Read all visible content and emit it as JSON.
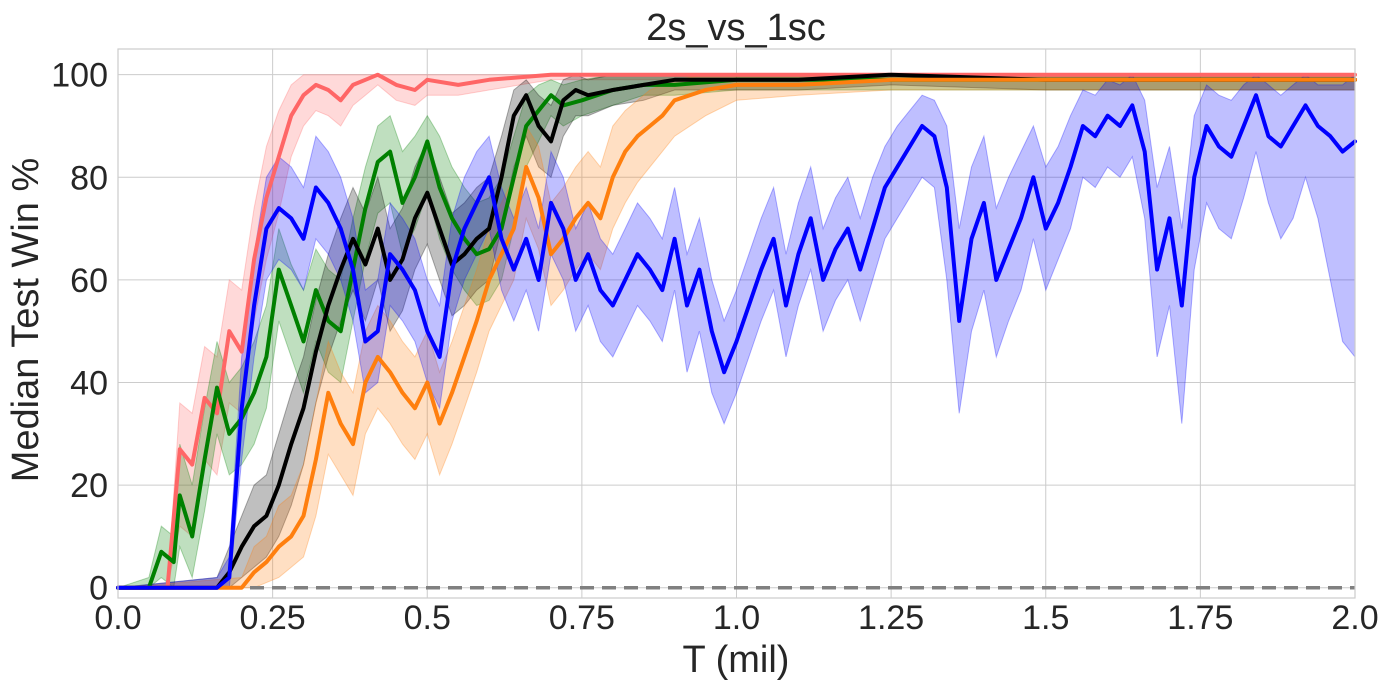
{
  "chart_data": {
    "type": "line",
    "title": "2s_vs_1sc",
    "xlabel": "T (mil)",
    "ylabel": "Median Test Win %",
    "xlim": [
      0.0,
      2.0
    ],
    "ylim": [
      -2,
      105
    ],
    "xticks": [
      "0.0",
      "0.25",
      "0.5",
      "0.75",
      "1.0",
      "1.25",
      "1.5",
      "1.75",
      "2.0"
    ],
    "yticks": [
      "0",
      "20",
      "40",
      "60",
      "80",
      "100"
    ],
    "grid": true,
    "legend": "none",
    "series": [
      {
        "color": "#ff6666",
        "x": [
          0.0,
          0.08,
          0.1,
          0.12,
          0.14,
          0.16,
          0.18,
          0.2,
          0.22,
          0.24,
          0.26,
          0.28,
          0.3,
          0.32,
          0.34,
          0.36,
          0.38,
          0.4,
          0.42,
          0.45,
          0.48,
          0.5,
          0.55,
          0.6,
          0.7,
          0.8,
          1.0,
          1.25,
          1.5,
          1.75,
          2.0
        ],
        "y": [
          0,
          0,
          27,
          24,
          37,
          34,
          50,
          46,
          64,
          76,
          84,
          92,
          96,
          98,
          97,
          95,
          98,
          99,
          100,
          98,
          97,
          99,
          98,
          99,
          100,
          100,
          100,
          100,
          100,
          100,
          100
        ],
        "lo": [
          0,
          0,
          12,
          10,
          25,
          22,
          36,
          34,
          52,
          64,
          73,
          84,
          90,
          93,
          92,
          90,
          94,
          96,
          98,
          95,
          94,
          96,
          96,
          97,
          99,
          99,
          99,
          99,
          99,
          99,
          99
        ],
        "hi": [
          0,
          0,
          36,
          34,
          47,
          45,
          60,
          58,
          74,
          86,
          93,
          98,
          100,
          100,
          100,
          100,
          100,
          100,
          100,
          100,
          100,
          100,
          100,
          100,
          100,
          100,
          100,
          100,
          100,
          100,
          100
        ]
      },
      {
        "color": "#008000",
        "x": [
          0.0,
          0.05,
          0.07,
          0.09,
          0.1,
          0.12,
          0.14,
          0.16,
          0.18,
          0.2,
          0.22,
          0.24,
          0.26,
          0.28,
          0.3,
          0.32,
          0.34,
          0.36,
          0.38,
          0.4,
          0.42,
          0.44,
          0.46,
          0.48,
          0.5,
          0.52,
          0.54,
          0.56,
          0.58,
          0.6,
          0.62,
          0.64,
          0.66,
          0.68,
          0.7,
          0.72,
          0.75,
          0.8,
          0.85,
          0.9,
          1.0,
          1.25,
          1.5,
          1.75,
          2.0
        ],
        "y": [
          0,
          0,
          7,
          5,
          18,
          10,
          25,
          39,
          30,
          33,
          38,
          45,
          62,
          55,
          48,
          58,
          52,
          50,
          62,
          74,
          83,
          85,
          75,
          80,
          87,
          78,
          72,
          68,
          65,
          66,
          70,
          80,
          90,
          93,
          96,
          94,
          95,
          97,
          98,
          98,
          99,
          99,
          99,
          99,
          99
        ],
        "lo": [
          0,
          0,
          2,
          0,
          8,
          2,
          15,
          30,
          22,
          24,
          28,
          35,
          52,
          45,
          38,
          48,
          42,
          40,
          52,
          64,
          73,
          75,
          65,
          70,
          77,
          68,
          62,
          58,
          55,
          56,
          60,
          70,
          82,
          87,
          92,
          90,
          92,
          94,
          96,
          96,
          97,
          97,
          97,
          97,
          97
        ],
        "hi": [
          0,
          2,
          12,
          10,
          28,
          20,
          35,
          48,
          40,
          43,
          48,
          55,
          70,
          63,
          58,
          66,
          62,
          60,
          72,
          82,
          90,
          92,
          85,
          88,
          92,
          88,
          82,
          78,
          75,
          76,
          80,
          88,
          96,
          98,
          99,
          98,
          99,
          100,
          100,
          100,
          100,
          100,
          100,
          100,
          100
        ]
      },
      {
        "color": "#000000",
        "x": [
          0.0,
          0.16,
          0.18,
          0.2,
          0.22,
          0.24,
          0.26,
          0.28,
          0.3,
          0.32,
          0.34,
          0.36,
          0.38,
          0.4,
          0.42,
          0.44,
          0.46,
          0.48,
          0.5,
          0.52,
          0.54,
          0.56,
          0.58,
          0.6,
          0.62,
          0.64,
          0.66,
          0.68,
          0.7,
          0.72,
          0.74,
          0.76,
          0.8,
          0.85,
          0.9,
          1.0,
          1.1,
          1.25,
          1.5,
          1.75,
          2.0
        ],
        "y": [
          0,
          0,
          3,
          8,
          12,
          14,
          20,
          28,
          35,
          46,
          55,
          62,
          68,
          63,
          70,
          60,
          64,
          72,
          77,
          70,
          63,
          65,
          68,
          70,
          80,
          92,
          96,
          90,
          87,
          95,
          97,
          96,
          97,
          98,
          99,
          99,
          99,
          100,
          99,
          99,
          99
        ],
        "lo": [
          0,
          0,
          0,
          2,
          4,
          6,
          10,
          16,
          24,
          36,
          45,
          52,
          58,
          52,
          60,
          50,
          54,
          62,
          67,
          60,
          53,
          55,
          58,
          60,
          70,
          82,
          88,
          82,
          80,
          88,
          92,
          92,
          94,
          95,
          97,
          97,
          97,
          98,
          97,
          97,
          97
        ],
        "hi": [
          0,
          2,
          8,
          14,
          20,
          22,
          30,
          38,
          45,
          56,
          65,
          72,
          78,
          73,
          80,
          70,
          74,
          82,
          87,
          80,
          73,
          75,
          78,
          80,
          88,
          97,
          99,
          96,
          94,
          99,
          100,
          99,
          100,
          100,
          100,
          100,
          100,
          100,
          100,
          100,
          100
        ]
      },
      {
        "color": "#ff7f0e",
        "x": [
          0.0,
          0.2,
          0.22,
          0.24,
          0.26,
          0.28,
          0.3,
          0.32,
          0.34,
          0.36,
          0.38,
          0.4,
          0.42,
          0.44,
          0.46,
          0.48,
          0.5,
          0.52,
          0.54,
          0.56,
          0.58,
          0.6,
          0.62,
          0.64,
          0.66,
          0.68,
          0.7,
          0.72,
          0.74,
          0.76,
          0.78,
          0.8,
          0.82,
          0.84,
          0.86,
          0.88,
          0.9,
          0.95,
          1.0,
          1.1,
          1.25,
          1.5,
          1.75,
          2.0
        ],
        "y": [
          0,
          0,
          3,
          5,
          8,
          10,
          14,
          25,
          38,
          32,
          28,
          40,
          45,
          42,
          38,
          35,
          40,
          32,
          38,
          45,
          52,
          60,
          65,
          70,
          82,
          76,
          65,
          68,
          72,
          75,
          72,
          80,
          85,
          88,
          90,
          92,
          95,
          97,
          98,
          98,
          99,
          99,
          99,
          99
        ],
        "lo": [
          0,
          0,
          0,
          1,
          2,
          4,
          6,
          14,
          26,
          22,
          18,
          30,
          35,
          32,
          28,
          25,
          30,
          22,
          28,
          35,
          42,
          50,
          55,
          60,
          72,
          66,
          55,
          58,
          62,
          65,
          62,
          70,
          75,
          79,
          82,
          85,
          88,
          92,
          95,
          96,
          97,
          97,
          97,
          97
        ],
        "hi": [
          0,
          2,
          8,
          10,
          16,
          18,
          24,
          36,
          48,
          42,
          38,
          50,
          55,
          52,
          48,
          45,
          50,
          42,
          48,
          55,
          62,
          70,
          75,
          80,
          90,
          86,
          75,
          78,
          82,
          85,
          82,
          90,
          93,
          95,
          97,
          98,
          99,
          100,
          100,
          100,
          100,
          100,
          100,
          100
        ]
      },
      {
        "color": "#0000ff",
        "x": [
          0.0,
          0.16,
          0.18,
          0.2,
          0.22,
          0.24,
          0.26,
          0.28,
          0.3,
          0.32,
          0.34,
          0.36,
          0.38,
          0.4,
          0.42,
          0.44,
          0.46,
          0.48,
          0.5,
          0.52,
          0.54,
          0.56,
          0.58,
          0.6,
          0.62,
          0.64,
          0.66,
          0.68,
          0.7,
          0.72,
          0.74,
          0.76,
          0.78,
          0.8,
          0.82,
          0.84,
          0.86,
          0.88,
          0.9,
          0.92,
          0.94,
          0.96,
          0.98,
          1.0,
          1.02,
          1.04,
          1.06,
          1.08,
          1.1,
          1.12,
          1.14,
          1.16,
          1.18,
          1.2,
          1.22,
          1.24,
          1.26,
          1.28,
          1.3,
          1.32,
          1.34,
          1.36,
          1.38,
          1.4,
          1.42,
          1.44,
          1.46,
          1.48,
          1.5,
          1.52,
          1.54,
          1.56,
          1.58,
          1.6,
          1.62,
          1.64,
          1.66,
          1.68,
          1.7,
          1.72,
          1.74,
          1.76,
          1.78,
          1.8,
          1.82,
          1.84,
          1.86,
          1.88,
          1.9,
          1.92,
          1.94,
          1.96,
          1.98,
          2.0
        ],
        "y": [
          0,
          0,
          2,
          35,
          55,
          70,
          74,
          72,
          68,
          78,
          75,
          70,
          62,
          48,
          50,
          65,
          62,
          58,
          50,
          45,
          62,
          70,
          75,
          80,
          68,
          62,
          68,
          60,
          75,
          70,
          60,
          65,
          58,
          55,
          60,
          65,
          62,
          58,
          68,
          55,
          62,
          50,
          42,
          48,
          55,
          62,
          68,
          55,
          65,
          72,
          60,
          66,
          70,
          62,
          70,
          78,
          82,
          86,
          90,
          88,
          78,
          52,
          68,
          75,
          60,
          66,
          72,
          80,
          70,
          75,
          82,
          90,
          88,
          92,
          90,
          94,
          85,
          62,
          72,
          55,
          80,
          90,
          86,
          84,
          90,
          96,
          88,
          86,
          90,
          94,
          90,
          88,
          85,
          87
        ],
        "lo": [
          0,
          0,
          0,
          25,
          45,
          60,
          64,
          62,
          58,
          68,
          65,
          60,
          52,
          38,
          40,
          55,
          52,
          48,
          40,
          35,
          52,
          60,
          65,
          70,
          58,
          52,
          58,
          50,
          65,
          60,
          50,
          55,
          48,
          45,
          50,
          55,
          52,
          48,
          58,
          42,
          50,
          38,
          32,
          38,
          45,
          52,
          58,
          45,
          55,
          62,
          50,
          56,
          60,
          52,
          60,
          68,
          72,
          76,
          80,
          78,
          60,
          34,
          50,
          58,
          45,
          52,
          58,
          68,
          58,
          64,
          70,
          80,
          78,
          82,
          80,
          84,
          72,
          45,
          55,
          32,
          62,
          75,
          70,
          68,
          76,
          85,
          75,
          68,
          72,
          80,
          72,
          60,
          48,
          45
        ],
        "hi": [
          0,
          2,
          6,
          45,
          65,
          80,
          84,
          82,
          78,
          88,
          85,
          80,
          72,
          58,
          60,
          75,
          72,
          68,
          60,
          55,
          72,
          80,
          85,
          88,
          78,
          72,
          78,
          70,
          85,
          80,
          70,
          75,
          68,
          65,
          70,
          75,
          72,
          68,
          78,
          65,
          72,
          60,
          52,
          58,
          65,
          72,
          78,
          65,
          75,
          82,
          70,
          76,
          80,
          72,
          80,
          86,
          90,
          93,
          96,
          95,
          90,
          70,
          82,
          88,
          74,
          80,
          85,
          90,
          82,
          86,
          92,
          97,
          96,
          99,
          98,
          100,
          95,
          78,
          86,
          70,
          92,
          98,
          96,
          95,
          98,
          100,
          98,
          96,
          98,
          100,
          98,
          98,
          98,
          100
        ]
      }
    ],
    "baseline": {
      "y": 0,
      "color": "#808080",
      "style": "dashed"
    }
  }
}
